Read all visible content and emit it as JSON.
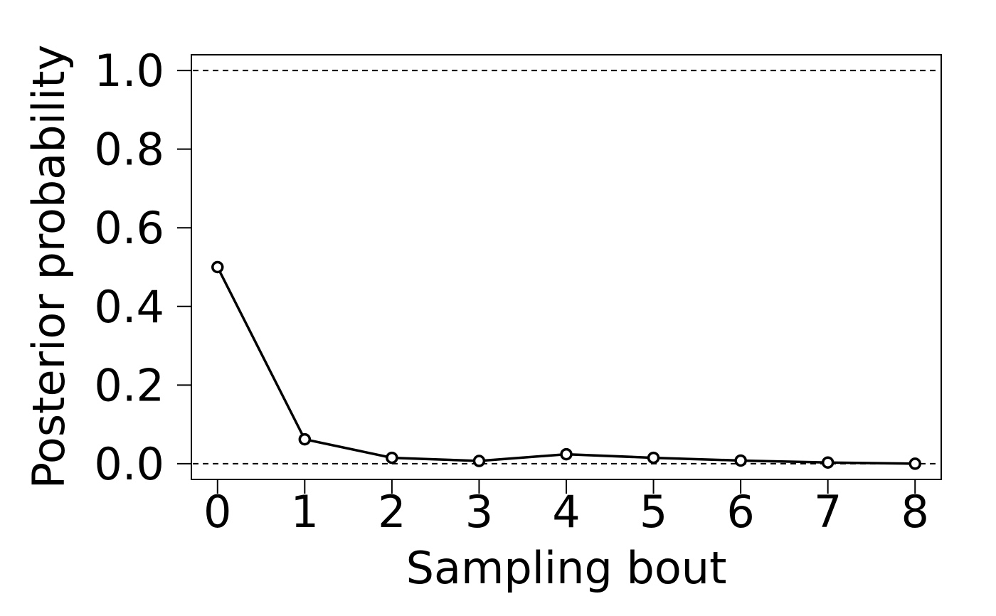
{
  "chart_data": {
    "type": "line",
    "title": "",
    "xlabel": "Sampling bout",
    "ylabel": "Posterior probability",
    "x": [
      0,
      1,
      2,
      3,
      4,
      5,
      6,
      7,
      8
    ],
    "series": [
      {
        "values": [
          0.5,
          0.062,
          0.015,
          0.007,
          0.024,
          0.015,
          0.008,
          0.003,
          0.0
        ]
      }
    ],
    "xlim": [
      -0.3,
      8.3
    ],
    "ylim": [
      -0.04,
      1.04
    ],
    "xticks": [
      "0",
      "1",
      "2",
      "3",
      "4",
      "5",
      "6",
      "7",
      "8"
    ],
    "yticks": [
      "0.0",
      "0.2",
      "0.4",
      "0.6",
      "0.8",
      "1.0"
    ],
    "reference_lines": [
      1.0,
      0.0
    ],
    "markers": "open-circle",
    "grid": false,
    "legend": "none",
    "colors": {
      "line": "#000000",
      "reference": "#000000"
    }
  }
}
